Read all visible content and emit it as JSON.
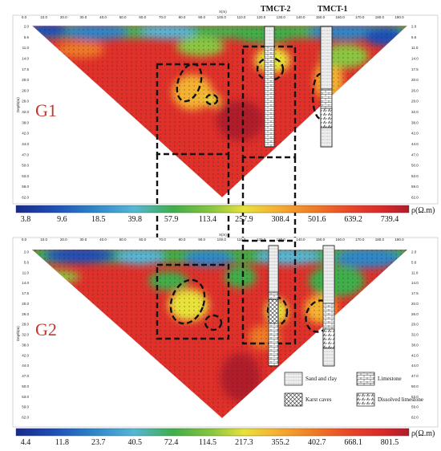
{
  "panels": [
    {
      "id": "G1",
      "label": "G1",
      "x_axis_label": "X(m)",
      "y_axis_label": "Depth(m)",
      "x_ticks": [
        "0.0",
        "10.0",
        "20.0",
        "30.0",
        "40.0",
        "50.0",
        "60.0",
        "70.0",
        "80.0",
        "90.0",
        "100.0",
        "110.0",
        "120.0",
        "130.0",
        "140.0",
        "150.0",
        "160.0",
        "170.0",
        "180.0",
        "190.0"
      ],
      "depth_ticks": [
        "2.0",
        "5.6",
        "11.0",
        "14.0",
        "17.5",
        "20.0",
        "26.0",
        "29.0",
        "32.0",
        "38.0",
        "42.0",
        "44.0",
        "47.0",
        "50.0",
        "53.0",
        "59.0",
        "62.0"
      ],
      "colorbar": {
        "unit": "ρ(Ω.m)",
        "values": [
          "3.8",
          "9.6",
          "18.5",
          "39.8",
          "57.9",
          "113.4",
          "257.9",
          "308.4",
          "501.6",
          "639.2",
          "739.4"
        ]
      }
    },
    {
      "id": "G2",
      "label": "G2",
      "x_axis_label": "X(m)",
      "y_axis_label": "Depth(m)",
      "x_ticks": [
        "0.0",
        "10.0",
        "20.0",
        "30.0",
        "40.0",
        "50.0",
        "60.0",
        "70.0",
        "80.0",
        "90.0",
        "100.0",
        "110.0",
        "120.0",
        "130.0",
        "140.0",
        "150.0",
        "160.0",
        "170.0",
        "180.0",
        "190.0"
      ],
      "depth_ticks": [
        "2.0",
        "5.6",
        "11.0",
        "14.0",
        "17.5",
        "20.0",
        "26.0",
        "29.0",
        "32.0",
        "38.0",
        "42.0",
        "44.0",
        "47.0",
        "50.0",
        "53.0",
        "59.0",
        "62.0"
      ],
      "colorbar": {
        "unit": "ρ(Ω.m)",
        "values": [
          "4.4",
          "11.8",
          "23.7",
          "40.5",
          "72.4",
          "114.5",
          "217.3",
          "355.2",
          "402.7",
          "668.1",
          "801.5"
        ]
      }
    }
  ],
  "boreholes": [
    "TMCT-2",
    "TMCT-1"
  ],
  "legend": [
    {
      "label": "Sand and clay",
      "pattern": "sand"
    },
    {
      "label": "Limestone",
      "pattern": "limestone"
    },
    {
      "label": "Karst caves",
      "pattern": "karst"
    },
    {
      "label": "Dissolved limestone",
      "pattern": "dissolved"
    }
  ],
  "colors": {
    "scale": [
      "#1a2a8c",
      "#1f4fb8",
      "#2f86c8",
      "#56b6d6",
      "#3fae4a",
      "#8cc63f",
      "#e8e23a",
      "#f4b233",
      "#f07a25",
      "#e8402a",
      "#d7262b",
      "#b01c2a"
    ]
  }
}
